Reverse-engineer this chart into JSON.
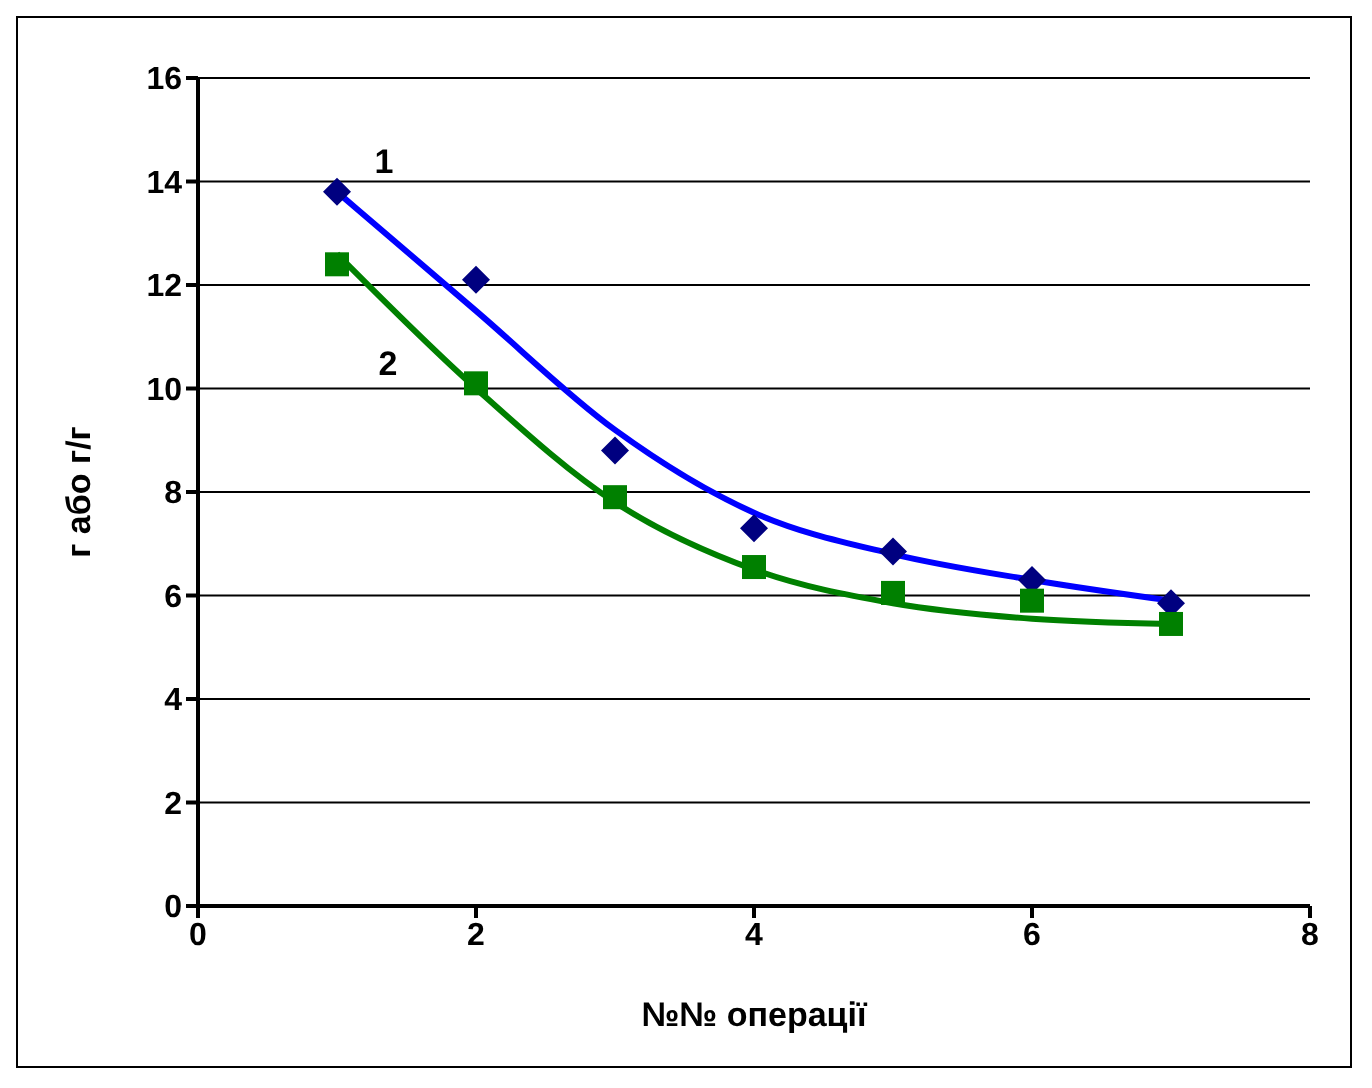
{
  "chart_data": {
    "type": "scatter",
    "xlabel": "№№ операції",
    "ylabel": "г або г/г",
    "xlim": [
      0,
      8
    ],
    "xticks": [
      0,
      2,
      4,
      6,
      8
    ],
    "ylim": [
      0,
      16
    ],
    "yticks": [
      0,
      2,
      4,
      6,
      8,
      10,
      12,
      14,
      16
    ],
    "grid": "y",
    "legend": false,
    "series": [
      {
        "type": "line",
        "color": "#0000ff",
        "marker": "none",
        "x": [
          1,
          2,
          3,
          4,
          5,
          6,
          7
        ],
        "values": [
          13.8,
          11.5,
          9.2,
          7.6,
          6.8,
          6.3,
          5.9
        ]
      },
      {
        "type": "line",
        "color": "#008000",
        "marker": "none",
        "x": [
          1,
          2,
          3,
          4,
          5,
          6,
          7
        ],
        "values": [
          12.6,
          10.0,
          7.8,
          6.5,
          5.85,
          5.55,
          5.45
        ]
      },
      {
        "name": "1",
        "color": "#000080",
        "marker": "diamond",
        "x": [
          1,
          2,
          3,
          4,
          5,
          6,
          7
        ],
        "values": [
          13.8,
          12.1,
          8.8,
          7.3,
          6.85,
          6.3,
          5.85
        ]
      },
      {
        "name": "2",
        "color": "#008000",
        "marker": "square",
        "x": [
          1,
          2,
          3,
          4,
          5,
          6,
          7
        ],
        "values": [
          12.4,
          10.1,
          7.9,
          6.55,
          6.05,
          5.9,
          5.45
        ]
      }
    ]
  }
}
